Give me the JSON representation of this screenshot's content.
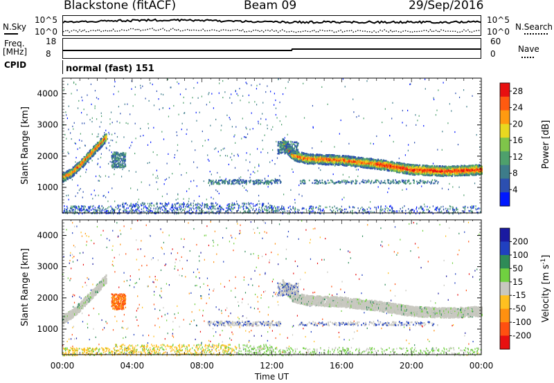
{
  "header": {
    "radar": "Blackstone (fitACF)",
    "beam": "Beam 09",
    "date": "29/Sep/2016"
  },
  "top_panels": {
    "nsky_label": "N.Sky",
    "nsearch_label": "N.Search",
    "nsky_ticks": [
      "10^5",
      "10^0"
    ],
    "nsearch_ticks": [
      "10^5",
      "10^0"
    ],
    "freq_label": "Freq.",
    "freq_unit": "[MHz]",
    "freq_ticks": [
      "18",
      "8"
    ],
    "nave_label": "Nave",
    "nave_ticks": [
      "60",
      "0"
    ],
    "cpid_label": "CPID",
    "cpid_value": "normal (fast) 151"
  },
  "chart_data": [
    {
      "type": "heatmap",
      "name": "power",
      "xlabel": "Time UT",
      "ylabel": "Slant Range [km]",
      "x_ticks": [
        "00:00",
        "04:00",
        "08:00",
        "12:00",
        "16:00",
        "20:00",
        "00:00"
      ],
      "xlim_hours": [
        0,
        24
      ],
      "y_ticks": [
        1000,
        2000,
        3000,
        4000
      ],
      "ylim": [
        180,
        4500
      ],
      "colorbar": {
        "label": "Power [dB]",
        "ticks": [
          4,
          8,
          12,
          16,
          20,
          24,
          28
        ],
        "range": [
          0,
          30
        ],
        "colors": [
          "#0018ff",
          "#2c4fb0",
          "#3d7c8a",
          "#4ea06c",
          "#7fc44a",
          "#e8d820",
          "#ff9a10",
          "#ff5a10",
          "#e81010"
        ]
      },
      "features": [
        {
          "desc": "echo band",
          "t": [
            0.0,
            0.5,
            1.0,
            1.5,
            2.0,
            2.5
          ],
          "range_km": [
            1350,
            1500,
            1750,
            2050,
            2350,
            2650
          ]
        },
        {
          "desc": "echo band",
          "t": [
            12.6,
            13.2,
            14,
            16,
            18,
            20,
            22,
            24
          ],
          "range_km": [
            2450,
            2050,
            1950,
            1900,
            1780,
            1600,
            1550,
            1600
          ]
        }
      ]
    },
    {
      "type": "heatmap",
      "name": "velocity",
      "xlabel": "Time UT",
      "ylabel": "Slant Range [km]",
      "x_ticks": [
        "00:00",
        "04:00",
        "08:00",
        "12:00",
        "16:00",
        "20:00",
        "00:00"
      ],
      "xlim_hours": [
        0,
        24
      ],
      "y_ticks": [
        1000,
        2000,
        3000,
        4000
      ],
      "ylim": [
        180,
        4500
      ],
      "colorbar": {
        "label": "Velocity [m s^-1]",
        "ticks": [
          200,
          100,
          50,
          15,
          -15,
          -50,
          -100,
          -200
        ],
        "colors": [
          "#1a1aa0",
          "#2040c0",
          "#2e8b57",
          "#70d040",
          "#c8c8c0",
          "#ffc020",
          "#ff9010",
          "#ff5010",
          "#e81010"
        ]
      }
    }
  ]
}
